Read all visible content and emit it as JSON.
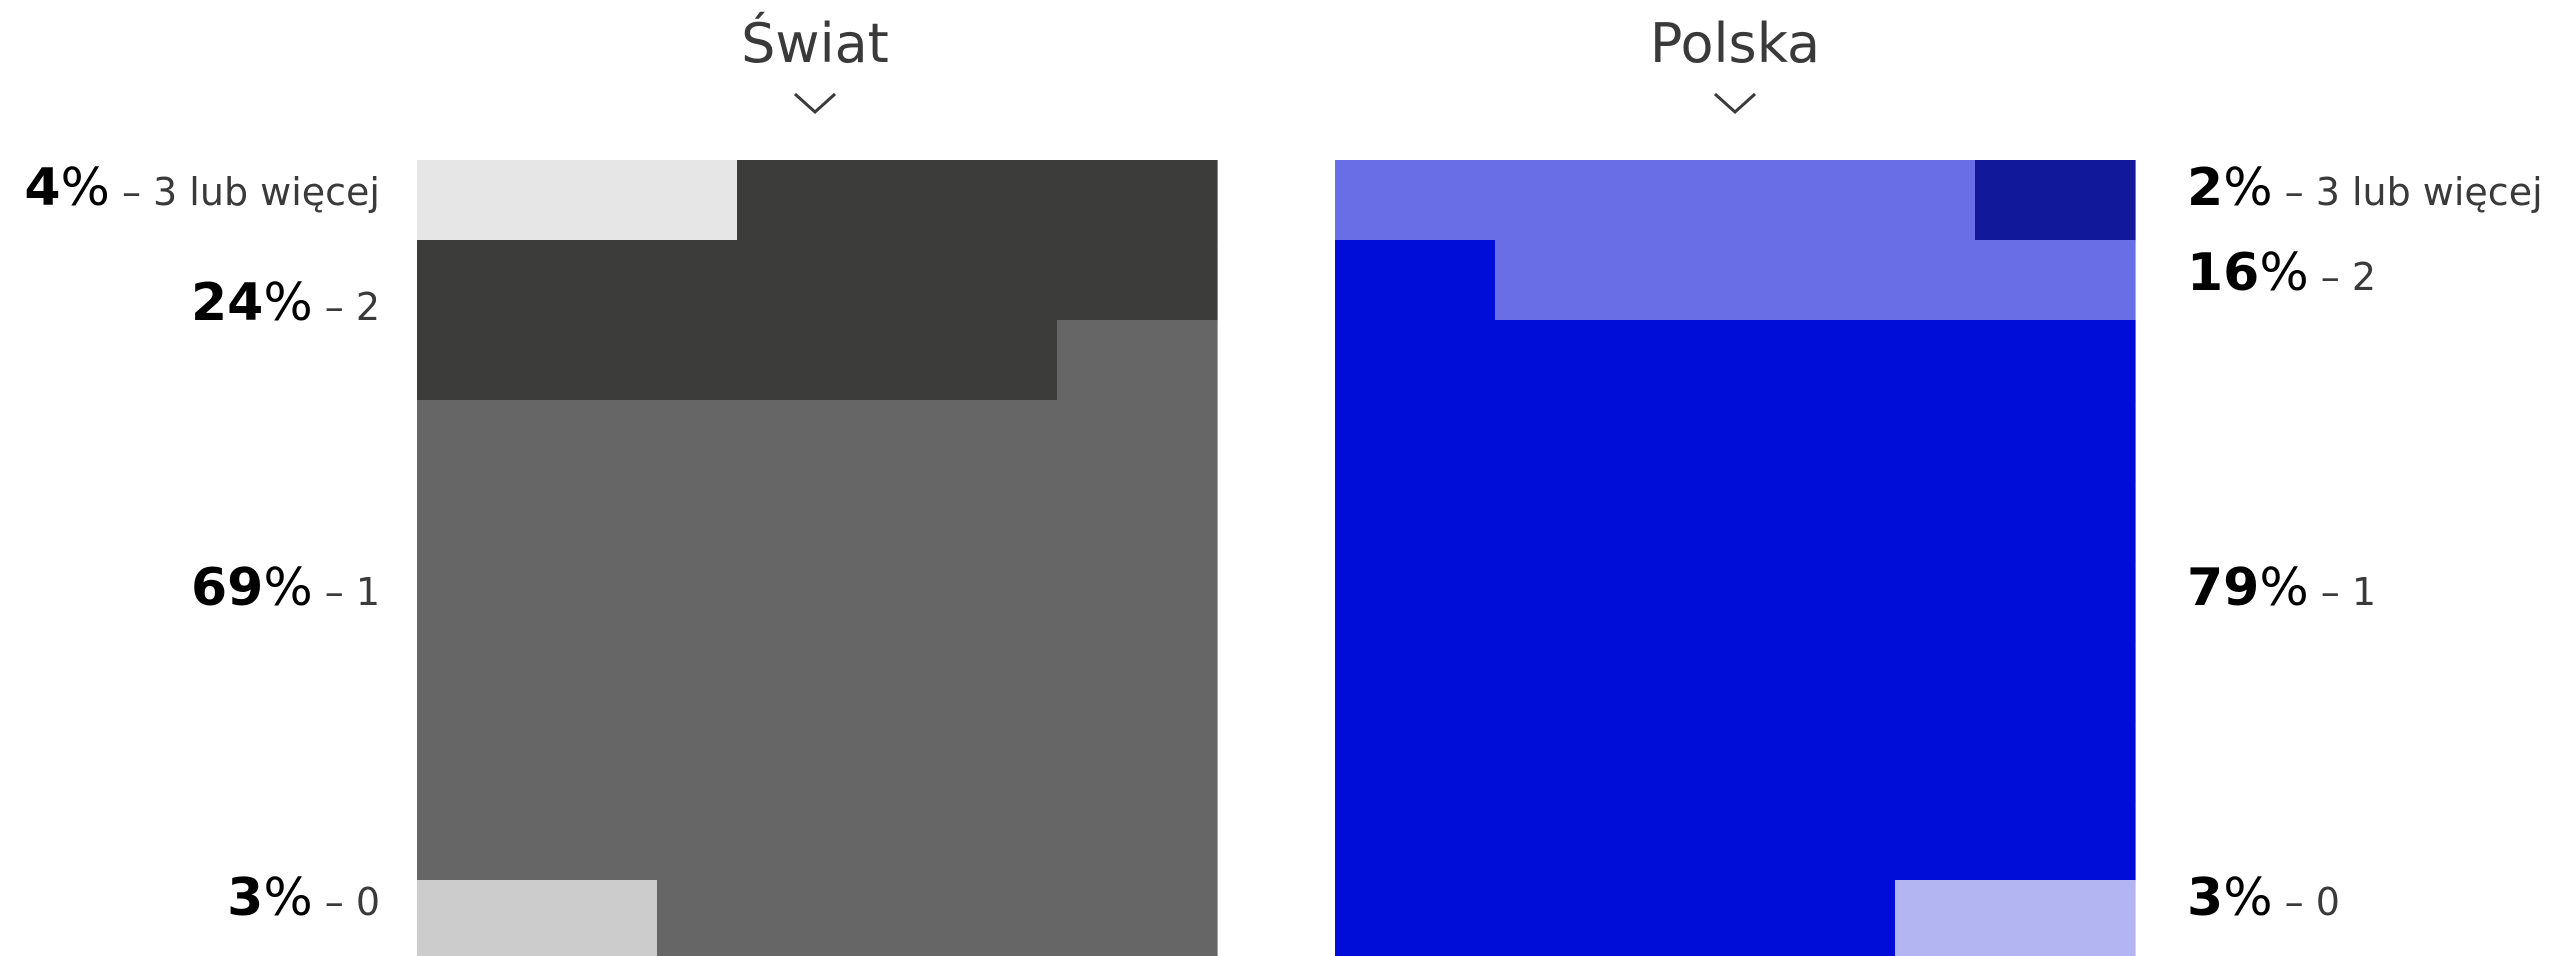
{
  "chart_data": [
    {
      "type": "waffle",
      "title": "Świat",
      "grid": {
        "columns": 10,
        "rows": 10
      },
      "categories": [
        "3 lub więcej",
        "2",
        "1",
        "0"
      ],
      "values": [
        4,
        24,
        69,
        3
      ],
      "labels": [
        {
          "value": "4",
          "unit": "%",
          "text": "– 3 lub więcej"
        },
        {
          "value": "24",
          "unit": "%",
          "text": "– 2"
        },
        {
          "value": "69",
          "unit": "%",
          "text": "– 1"
        },
        {
          "value": "3",
          "unit": "%",
          "text": "– 0"
        }
      ],
      "colors": [
        "#e6e6e6",
        "#3c3c3b",
        "#666666",
        "#cccccc"
      ],
      "label_side": "left"
    },
    {
      "type": "waffle",
      "title": "Polska",
      "grid": {
        "columns": 10,
        "rows": 10
      },
      "categories": [
        "3 lub więcej",
        "2",
        "1",
        "0"
      ],
      "values": [
        2,
        16,
        79,
        3
      ],
      "labels": [
        {
          "value": "2",
          "unit": "%",
          "text": "– 3 lub więcej"
        },
        {
          "value": "16",
          "unit": "%",
          "text": "– 2"
        },
        {
          "value": "79",
          "unit": "%",
          "text": "– 1"
        },
        {
          "value": "3",
          "unit": "%",
          "text": "– 0"
        }
      ],
      "colors": [
        "#11199a",
        "#6a6ee6",
        "#000dd8",
        "#b3b5f3"
      ],
      "label_side": "right"
    }
  ]
}
